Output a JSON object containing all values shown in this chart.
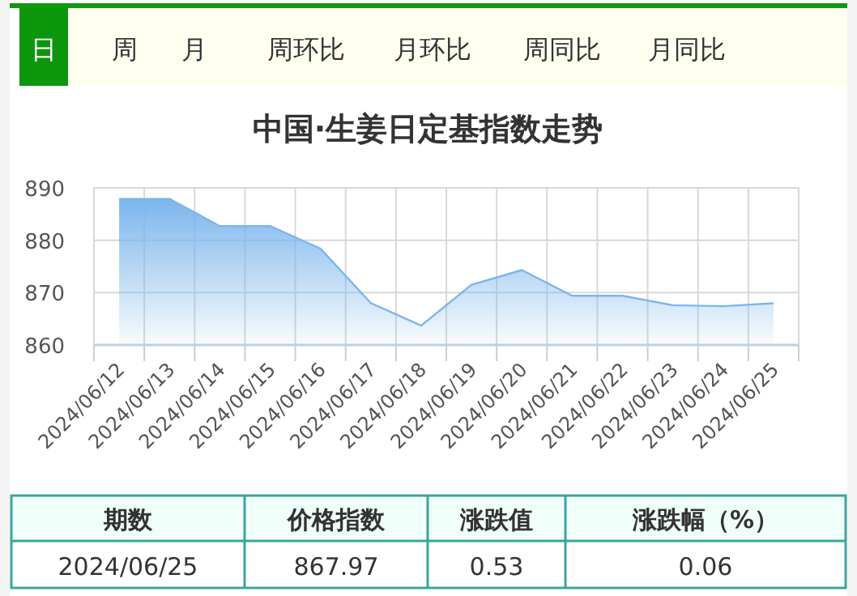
{
  "chart_data": [
    {
      "type": "other",
      "annotations": [
        "日",
        "周",
        "月",
        "周环比",
        "月环比",
        "周同比",
        "月同比"
      ]
    },
    {
      "type": "area",
      "title": "中国·生姜日定基指数走势",
      "categories": [
        "2024/06/12",
        "2024/06/13",
        "2024/06/14",
        "2024/06/15",
        "2024/06/16",
        "2024/06/17",
        "2024/06/18",
        "2024/06/19",
        "2024/06/20",
        "2024/06/21",
        "2024/06/22",
        "2024/06/23",
        "2024/06/24",
        "2024/06/25"
      ],
      "series": [
        {
          "color": "#7cb5ec",
          "values": [
            887.9,
            887.9,
            882.7,
            882.7,
            878.4,
            868.0,
            863.7,
            871.5,
            874.3,
            869.4,
            869.4,
            867.6,
            867.4,
            867.97
          ]
        }
      ],
      "ylim": [
        860,
        890
      ],
      "yticks": [
        860,
        870,
        880,
        890
      ],
      "grid": true
    },
    {
      "type": "other",
      "annotations": [
        "期数",
        "价格指数",
        "涨跌值",
        "涨跌幅（%）",
        "2024/06/25",
        "867.97",
        "0.53",
        "0.06"
      ]
    }
  ]
}
